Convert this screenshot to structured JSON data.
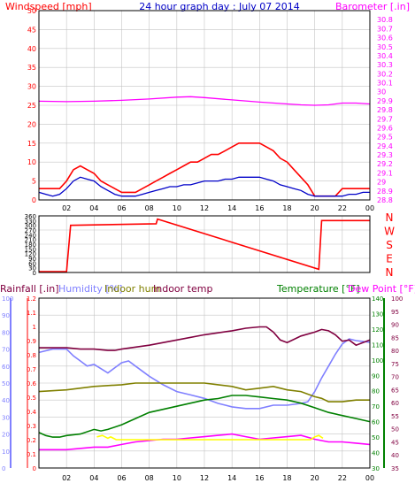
{
  "colors": {
    "background": "#ffffff",
    "plot_bg": "#ffffff",
    "frame": "#000000",
    "grid": "#c4c4c4",
    "windspeed": "#ff0000",
    "windspeed_avg": "#0000c8",
    "barometer": "#ff00ff",
    "direction": "#ff0000",
    "rain_axis": "#ff0000",
    "rainfall": "#ffff00",
    "humidity": "#8080ff",
    "indoor_hum": "#808000",
    "indoor_temp": "#800040",
    "temperature": "#008000",
    "dew_point": "#ff00ff",
    "title": "#0000c8"
  },
  "chart_data": [
    {
      "id": "wind",
      "type": "line",
      "title": "24 hour graph day : July 07 2014",
      "left_axis_label": "Windspeed [mph]",
      "right_axis_label": "Barometer [.in]",
      "left_ylim": [
        0,
        50
      ],
      "left_ticks": [
        "0",
        "5",
        "10",
        "15",
        "20",
        "25",
        "30",
        "35",
        "40",
        "45",
        "50"
      ],
      "right_ylim": [
        28.8,
        30.9
      ],
      "right_ticks": [
        "28.8",
        "28.9",
        "29",
        "29.1",
        "29.2",
        "29.3",
        "29.4",
        "29.5",
        "29.6",
        "29.7",
        "29.8",
        "29.9",
        "30",
        "30.1",
        "30.2",
        "30.3",
        "30.4",
        "30.5",
        "30.6",
        "30.7",
        "30.8"
      ],
      "xlim": [
        0,
        24
      ],
      "x_ticks": [
        "02",
        "04",
        "06",
        "08",
        "10",
        "12",
        "14",
        "16",
        "18",
        "20",
        "22",
        "00"
      ],
      "grid": true,
      "series": [
        {
          "name": "Windspeed",
          "axis": "left",
          "color_key": "windspeed",
          "x": [
            0,
            0.5,
            1,
            1.5,
            2,
            2.5,
            3,
            3.5,
            4,
            4.5,
            5,
            5.5,
            6,
            6.5,
            7,
            7.5,
            8,
            8.5,
            9,
            9.5,
            10,
            10.5,
            11,
            11.5,
            12,
            12.5,
            13,
            13.5,
            14,
            14.5,
            15,
            15.5,
            16,
            16.5,
            17,
            17.5,
            18,
            18.5,
            19,
            19.5,
            20,
            20.5,
            21,
            21.5,
            22,
            22.5,
            23,
            23.5,
            24
          ],
          "y": [
            3,
            3,
            3,
            3,
            5,
            8,
            9,
            8,
            7,
            5,
            4,
            3,
            2,
            2,
            2,
            3,
            4,
            5,
            6,
            7,
            8,
            9,
            10,
            10,
            11,
            12,
            12,
            13,
            14,
            15,
            15,
            15,
            15,
            14,
            13,
            11,
            10,
            8,
            6,
            4,
            1,
            1,
            1,
            1,
            3,
            3,
            3,
            3,
            3
          ]
        },
        {
          "name": "Average windspeed",
          "axis": "left",
          "color_key": "windspeed_avg",
          "x": [
            0,
            0.5,
            1,
            1.5,
            2,
            2.5,
            3,
            3.5,
            4,
            4.5,
            5,
            5.5,
            6,
            6.5,
            7,
            7.5,
            8,
            8.5,
            9,
            9.5,
            10,
            10.5,
            11,
            11.5,
            12,
            12.5,
            13,
            13.5,
            14,
            14.5,
            15,
            15.5,
            16,
            16.5,
            17,
            17.5,
            18,
            18.5,
            19,
            19.5,
            20,
            20.5,
            21,
            21.5,
            22,
            22.5,
            23,
            23.5,
            24
          ],
          "y": [
            2,
            1.5,
            1,
            1.5,
            3,
            5,
            6,
            5.5,
            5,
            3.5,
            2.5,
            1.5,
            1,
            1,
            1,
            1.5,
            2,
            2.5,
            3,
            3.5,
            3.5,
            4,
            4,
            4.5,
            5,
            5,
            5,
            5.5,
            5.5,
            6,
            6,
            6,
            6,
            5.5,
            5,
            4,
            3.5,
            3,
            2.5,
            1.5,
            1,
            1,
            1,
            1,
            1,
            1.5,
            1.5,
            2,
            2
          ]
        },
        {
          "name": "Barometer",
          "axis": "right",
          "color_key": "barometer",
          "x": [
            0,
            2,
            4,
            6,
            8,
            10,
            11,
            12,
            14,
            16,
            18,
            19,
            20,
            21,
            22,
            23,
            24
          ],
          "y": [
            29.895,
            29.89,
            29.895,
            29.905,
            29.92,
            29.94,
            29.945,
            29.935,
            29.91,
            29.885,
            29.865,
            29.855,
            29.85,
            29.855,
            29.875,
            29.875,
            29.865
          ]
        }
      ]
    },
    {
      "id": "direction",
      "type": "line",
      "ylim": [
        0,
        360
      ],
      "left_ticks": [
        "0",
        "30",
        "60",
        "90",
        "120",
        "150",
        "180",
        "210",
        "240",
        "270",
        "300",
        "330",
        "360"
      ],
      "right_labels": [
        "N",
        "W",
        "S",
        "E",
        "N"
      ],
      "xlim": [
        0,
        24
      ],
      "grid": true,
      "series": [
        {
          "name": "Wind direction",
          "color_key": "direction",
          "x": [
            0,
            2,
            2.3,
            8.5,
            8.6,
            20.3,
            20.5,
            24
          ],
          "y": [
            5,
            5,
            300,
            310,
            340,
            20,
            330,
            330
          ]
        }
      ]
    },
    {
      "id": "temperature",
      "type": "line",
      "legend": [
        "Rainfall [.in]",
        "Humidity [%]",
        "Indoor hum",
        "Indoor temp",
        "Temperature [°F]",
        "Dew Point [°F]"
      ],
      "rain_ylim": [
        0,
        1.2
      ],
      "rain_ticks": [
        "0",
        "0.1",
        "0.2",
        "0.3",
        "0.4",
        "0.5",
        "0.6",
        "0.7",
        "0.8",
        "0.9",
        "1",
        "1.1",
        "1.2"
      ],
      "hum_ylim": [
        0,
        100
      ],
      "hum_ticks": [
        "0",
        "10",
        "20",
        "30",
        "40",
        "50",
        "60",
        "70",
        "80",
        "90",
        "100"
      ],
      "temp_left_ylim": [
        35,
        100
      ],
      "temp_left_ticks": [
        "35",
        "40",
        "45",
        "50",
        "55",
        "60",
        "65",
        "70",
        "75",
        "80",
        "85",
        "90",
        "95",
        "100"
      ],
      "temp_right_ylim": [
        30,
        140
      ],
      "temp_right_ticks": [
        "30",
        "40",
        "50",
        "60",
        "70",
        "80",
        "90",
        "100",
        "110",
        "120",
        "130",
        "140"
      ],
      "xlim": [
        0,
        24
      ],
      "x_ticks": [
        "02",
        "04",
        "06",
        "08",
        "10",
        "12",
        "14",
        "16",
        "18",
        "20",
        "22",
        "00"
      ],
      "grid": true,
      "series": [
        {
          "name": "Humidity",
          "axis": "hum",
          "color_key": "humidity",
          "x": [
            0,
            1,
            2,
            2.5,
            3,
            3.5,
            4,
            5,
            6,
            6.5,
            7,
            8,
            9,
            10,
            11,
            12,
            13,
            14,
            15,
            16,
            17,
            18,
            19,
            19.5,
            20,
            20.5,
            21,
            21.5,
            22,
            22.5,
            23,
            24
          ],
          "y": [
            68,
            70,
            70,
            66,
            63,
            60,
            61,
            56,
            62,
            63,
            60,
            54,
            49,
            45,
            43,
            41,
            38,
            36,
            35,
            35,
            37,
            37,
            38,
            39,
            45,
            53,
            60,
            67,
            73,
            76,
            75,
            74
          ]
        },
        {
          "name": "Indoor hum",
          "axis": "hum",
          "color_key": "indoor_hum",
          "x": [
            0,
            2,
            4,
            6,
            7,
            8,
            9,
            10,
            12,
            13,
            14,
            15,
            16,
            17,
            18,
            19,
            20,
            20.5,
            21,
            22,
            23,
            24
          ],
          "y": [
            45,
            46,
            48,
            49,
            50,
            50,
            50,
            50,
            50,
            49,
            48,
            46,
            47,
            48,
            46,
            45,
            42,
            41,
            39,
            39,
            40,
            40
          ]
        },
        {
          "name": "Indoor temp",
          "axis": "temp_left",
          "color_key": "indoor_temp",
          "x": [
            0,
            2,
            3,
            4,
            5,
            5.5,
            6,
            8,
            10,
            12,
            14,
            15,
            16,
            16.5,
            17,
            17.5,
            18,
            19,
            20,
            20.5,
            21,
            21.5,
            22,
            22.5,
            23,
            24
          ],
          "y": [
            81,
            81,
            80.5,
            80.5,
            80,
            80,
            80.5,
            82,
            84,
            86,
            87.5,
            88.5,
            89,
            89,
            87,
            84,
            83,
            85.5,
            87,
            88,
            87.5,
            86,
            83.5,
            84,
            82,
            84
          ]
        },
        {
          "name": "Temperature",
          "axis": "temp_right",
          "color_key": "temperature",
          "x": [
            0,
            0.5,
            1,
            1.5,
            2,
            3,
            4,
            4.5,
            5,
            6,
            7,
            8,
            9,
            10,
            11,
            12,
            13,
            14,
            15,
            16,
            17,
            18,
            19,
            20,
            21,
            22,
            23,
            24
          ],
          "y": [
            53,
            51,
            50,
            50,
            51,
            52,
            55,
            54,
            55,
            58,
            62,
            66,
            68,
            70,
            72,
            74,
            75,
            77,
            77,
            76,
            75,
            74,
            72,
            69,
            66,
            64,
            62,
            60
          ]
        },
        {
          "name": "Dew Point",
          "axis": "temp_left",
          "color_key": "dew_point",
          "x": [
            0,
            2,
            4,
            5,
            6,
            7,
            8,
            9,
            10,
            11,
            12,
            13,
            14,
            15,
            16,
            17,
            18,
            19,
            20,
            21,
            22,
            23,
            24
          ],
          "y": [
            42,
            42,
            43,
            43,
            44,
            45,
            45.5,
            46,
            46,
            46.5,
            47,
            47.5,
            48,
            47,
            46,
            46.5,
            47,
            47.5,
            46,
            45,
            45,
            44.5,
            44
          ]
        },
        {
          "name": "Rainfall",
          "axis": "rain",
          "color_key": "rainfall",
          "x": [
            4.2,
            4.6,
            5,
            5.2,
            5.6,
            19.7,
            20,
            20.3,
            20.6
          ],
          "y": [
            0.22,
            0.23,
            0.21,
            0.22,
            0.2,
            0.2,
            0.22,
            0.23,
            0.21
          ]
        }
      ]
    }
  ]
}
